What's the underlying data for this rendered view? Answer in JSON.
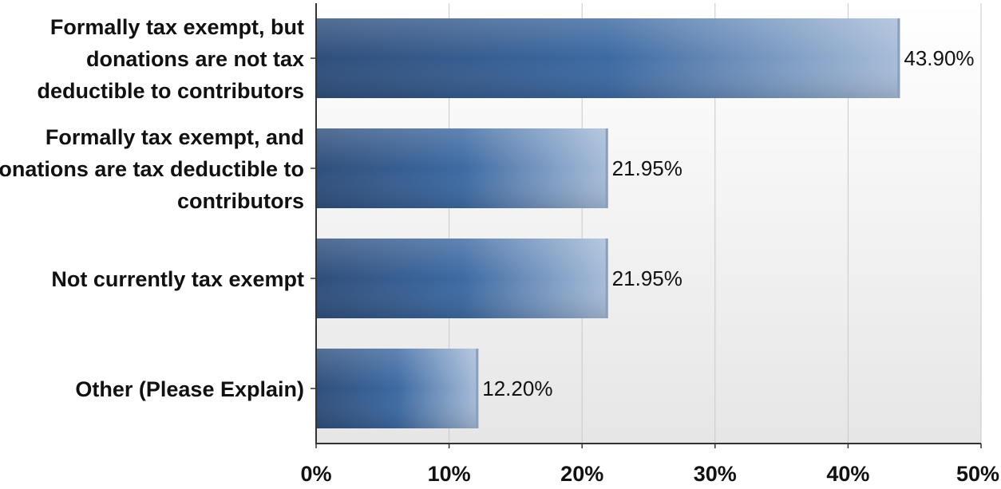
{
  "chart_data": {
    "type": "bar",
    "orientation": "horizontal",
    "categories": [
      [
        "Formally tax exempt, but",
        "donations are not tax",
        "deductible to contributors"
      ],
      [
        "Formally tax exempt,  and",
        "donations are tax deductible to",
        "contributors"
      ],
      [
        "Not currently tax exempt"
      ],
      [
        "Other (Please Explain)"
      ]
    ],
    "values": [
      43.9,
      21.95,
      21.95,
      12.2
    ],
    "value_labels": [
      "43.90%",
      "21.95%",
      "21.95%",
      "12.20%"
    ],
    "xlim": [
      0,
      50
    ],
    "xticks": [
      0,
      10,
      20,
      30,
      40,
      50
    ],
    "xtick_labels": [
      "0%",
      "10%",
      "20%",
      "30%",
      "40%",
      "50%"
    ],
    "grid": true,
    "title": "",
    "xlabel": "",
    "ylabel": ""
  },
  "colors": {
    "bar_dark": "#2f4f7c",
    "bar_mid": "#3d6aa2",
    "bar_light": "#a8bdd9",
    "plot_bg_top": "#ffffff",
    "plot_bg_bottom": "#e6e6e6",
    "grid": "#c8c8c8",
    "axis": "#333333"
  }
}
